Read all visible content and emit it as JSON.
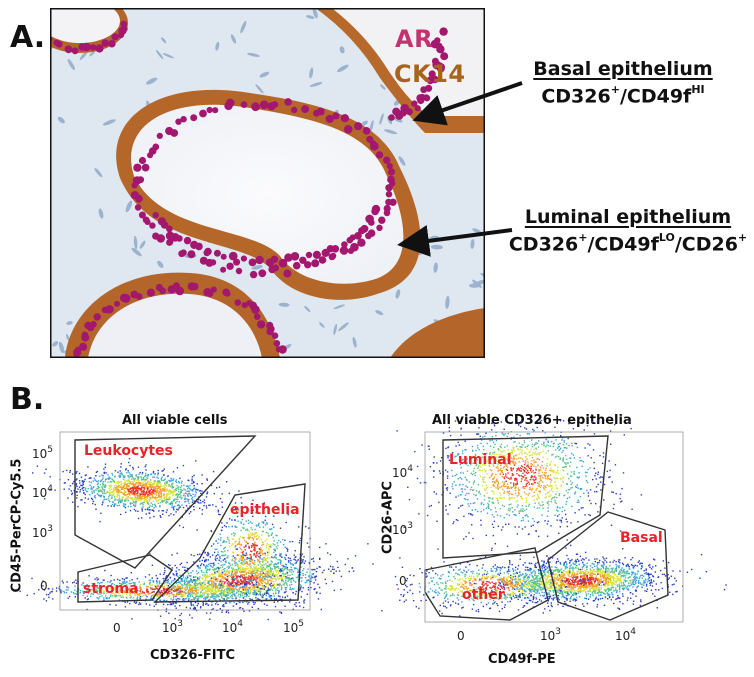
{
  "panel_a": {
    "label": "A.",
    "stain_legend": [
      {
        "text": "AR",
        "color": "#c2336f"
      },
      {
        "text": "CK14",
        "color": "#a8641a"
      }
    ],
    "annotations": [
      {
        "title": "Basal epithelium",
        "sub_base": "CD326",
        "sub_parts": [
          "+",
          "/CD49f",
          "HI"
        ]
      },
      {
        "title": "Luminal epithelium",
        "sub_base": "CD326",
        "sub_parts": [
          "+",
          "/CD49f",
          "LO",
          "/CD26",
          "+"
        ]
      }
    ]
  },
  "panel_b": {
    "label": "B."
  },
  "chart_data": [
    {
      "type": "scatter",
      "title": "All viable cells",
      "xlabel": "CD326-FITC",
      "ylabel": "CD45-PerCP-Cy5.5",
      "x_tick_labels": [
        "0",
        "10",
        "10",
        "10",
        "10"
      ],
      "x_tick_exponents": [
        "",
        "3",
        "4",
        "5",
        ""
      ],
      "y_tick_labels": [
        "10",
        "10",
        "10",
        "0"
      ],
      "y_tick_exponents": [
        "5",
        "4",
        "3",
        ""
      ],
      "gates": [
        {
          "name": "Leukocytes"
        },
        {
          "name": "epithelia"
        },
        {
          "name": "stroma"
        }
      ]
    },
    {
      "type": "scatter",
      "title": "All viable CD326+ epithelia",
      "xlabel": "CD49f-PE",
      "ylabel": "CD26-APC",
      "x_tick_labels": [
        "0",
        "10",
        "10",
        "10"
      ],
      "x_tick_exponents": [
        "",
        "3",
        "4",
        ""
      ],
      "y_tick_labels": [
        "10",
        "10",
        "0"
      ],
      "y_tick_exponents": [
        "4",
        "3",
        ""
      ],
      "gates": [
        {
          "name": "Luminal"
        },
        {
          "name": "Basal"
        },
        {
          "name": "other"
        }
      ]
    }
  ]
}
